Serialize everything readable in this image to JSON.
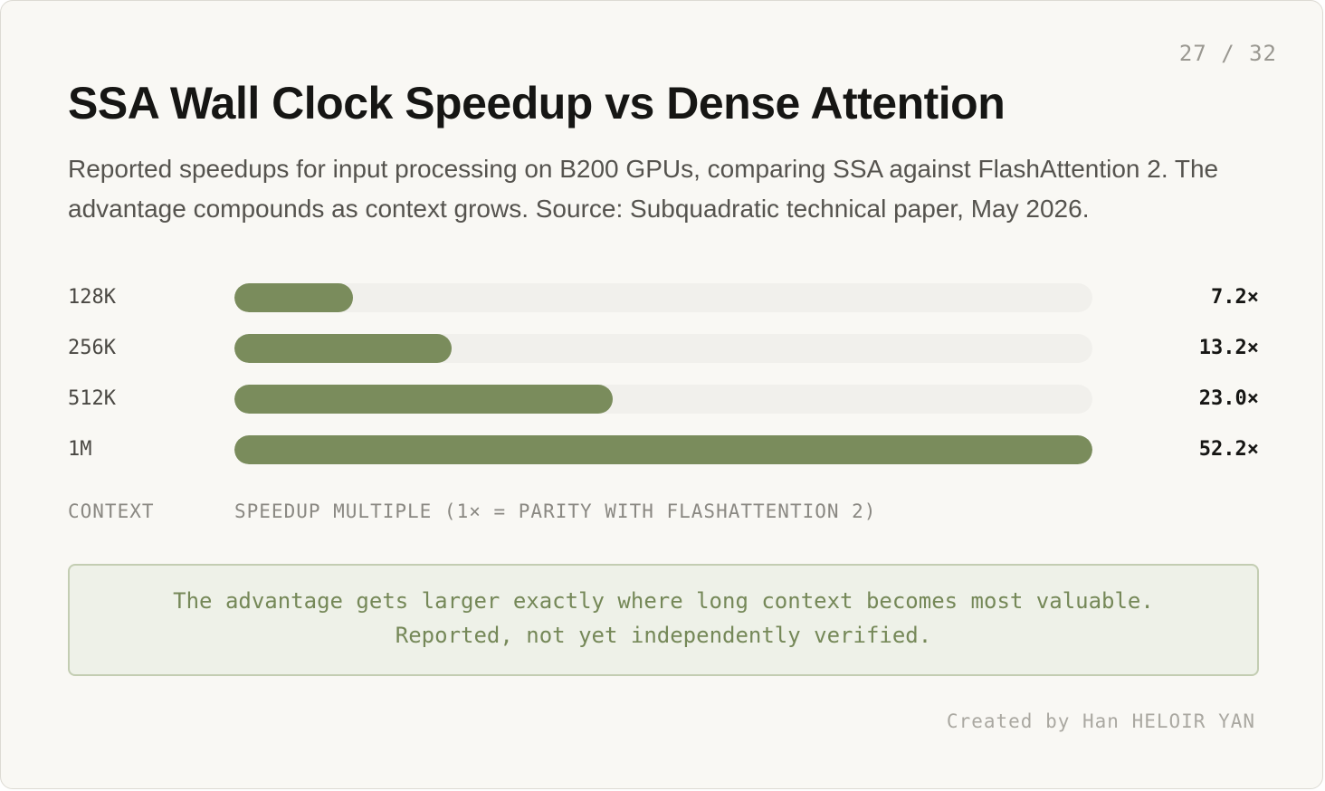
{
  "page_number": "27 / 32",
  "title": "SSA Wall Clock Speedup vs Dense Attention",
  "subtitle": "Reported speedups for input processing on B200 GPUs, comparing SSA against FlashAttention 2. The advantage compounds as context grows. Source: Subquadratic technical paper, May 2026.",
  "colors": {
    "bar_fill": "#7a8c5c",
    "bar_track": "#f1f0ec",
    "callout_bg": "#eef1e8",
    "callout_text": "#758858"
  },
  "chart_data": {
    "type": "bar",
    "orientation": "horizontal",
    "categories": [
      "128K",
      "256K",
      "512K",
      "1M"
    ],
    "values": [
      7.2,
      13.2,
      23.0,
      52.2
    ],
    "value_labels": [
      "7.2×",
      "13.2×",
      "23.0×",
      "52.2×"
    ],
    "xlim": [
      0,
      52.2
    ],
    "ylabel": "CONTEXT",
    "xlabel": "SPEEDUP MULTIPLE (1× = PARITY WITH FLASHATTENTION 2)",
    "grid": false,
    "legend": "none"
  },
  "callout": {
    "line1": "The advantage gets larger exactly where long context becomes most valuable.",
    "line2": "Reported, not yet independently verified."
  },
  "credit": "Created by Han HELOIR YAN"
}
